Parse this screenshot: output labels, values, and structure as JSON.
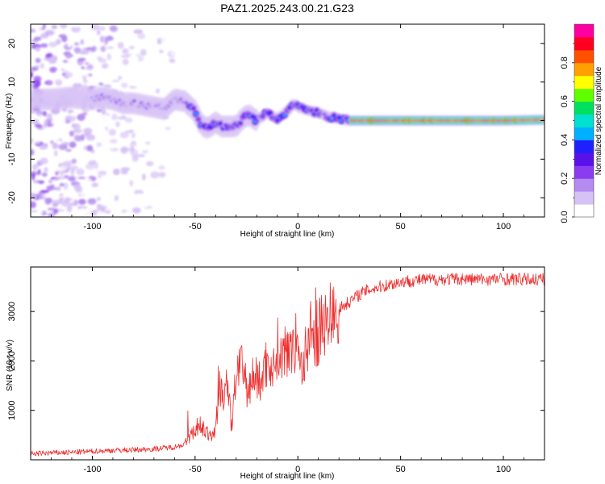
{
  "title": "PAZ1.2025.243.00.21.G23",
  "colors": {
    "snr_line": "#ee2e2e",
    "colormap": [
      "#ffffff",
      "#d6c2f5",
      "#b48cf0",
      "#8a3cf0",
      "#5a10e8",
      "#2020ff",
      "#00b0ff",
      "#00e0d0",
      "#00e060",
      "#60ff00",
      "#ffff00",
      "#ffa000",
      "#ff5000",
      "#ff0020",
      "#ff00a0"
    ]
  },
  "chart_data": [
    {
      "type": "heatmap",
      "name": "spectrogram",
      "xlabel": "Height of straight line (km)",
      "ylabel": "Frequency (Hz)",
      "xlim": [
        -130,
        120
      ],
      "ylim": [
        -25,
        25
      ],
      "xticks": [
        -100,
        -50,
        0,
        50,
        100
      ],
      "yticks": [
        -20,
        -10,
        0,
        10,
        20
      ],
      "xtick_labels": [
        "-100",
        "-50",
        "0",
        "50",
        "100"
      ],
      "ytick_labels": [
        "-20",
        "-10",
        "0",
        "10",
        "20"
      ],
      "ridge_frequency": {
        "x": [
          -130,
          -120,
          -110,
          -100,
          -95,
          -90,
          -85,
          -80,
          -75,
          -70,
          -65,
          -60,
          -55,
          -50,
          -47,
          -44,
          -40,
          -37,
          -34,
          -30,
          -27,
          -24,
          -20,
          -15,
          -10,
          -5,
          -2,
          0,
          3,
          6,
          10,
          15,
          20,
          25,
          30,
          40,
          60,
          80,
          100,
          120
        ],
        "y": [
          5.5,
          5.5,
          6,
          5.5,
          6,
          5.5,
          4.5,
          4.5,
          4.0,
          3.5,
          3.0,
          5.5,
          5.0,
          2.5,
          -1.0,
          -2.0,
          -0.5,
          -1.5,
          -1.5,
          -1.5,
          0.5,
          1.5,
          0.0,
          2.0,
          0.5,
          2.5,
          4.5,
          3.5,
          3.0,
          2.5,
          2.0,
          1.0,
          0.5,
          0.0,
          0.0,
          0.0,
          0.0,
          0.0,
          0.0,
          0.2
        ]
      },
      "colorbar": {
        "label": "Normalized spectral amplitude",
        "range": [
          0,
          1
        ],
        "ticks": [
          0.0,
          0.2,
          0.4,
          0.6,
          0.8
        ],
        "tick_labels": [
          "0.0",
          "0.2",
          "0.4",
          "0.6",
          "0.8"
        ]
      }
    },
    {
      "type": "line",
      "name": "snr",
      "xlabel": "Height of straight line (km)",
      "ylabel": "SNR (10 * v/v)",
      "xlim": [
        -130,
        120
      ],
      "ylim": [
        0,
        3900
      ],
      "xticks": [
        -100,
        -50,
        0,
        50,
        100
      ],
      "yticks": [
        1000,
        2000,
        3000
      ],
      "xtick_labels": [
        "-100",
        "-50",
        "0",
        "50",
        "100"
      ],
      "ytick_labels": [
        "1000",
        "2000",
        "3000"
      ],
      "series": [
        {
          "name": "SNR",
          "x": [
            -130,
            -120,
            -110,
            -100,
            -90,
            -80,
            -70,
            -60,
            -55,
            -50,
            -47,
            -44,
            -42,
            -40,
            -38,
            -36,
            -34,
            -32,
            -30,
            -28,
            -26,
            -24,
            -22,
            -20,
            -18,
            -16,
            -14,
            -12,
            -10,
            -8,
            -6,
            -4,
            -2,
            0,
            2,
            4,
            6,
            8,
            10,
            15,
            20,
            25,
            30,
            35,
            40,
            45,
            50,
            60,
            70,
            80,
            90,
            100,
            110,
            120
          ],
          "y": [
            120,
            140,
            150,
            170,
            190,
            200,
            220,
            260,
            320,
            600,
            700,
            520,
            460,
            650,
            1500,
            1250,
            1400,
            700,
            1800,
            2000,
            1500,
            1350,
            1700,
            1650,
            1550,
            1900,
            2050,
            1750,
            2300,
            2050,
            2150,
            2500,
            2300,
            2250,
            1800,
            2200,
            2600,
            2450,
            2600,
            2850,
            3050,
            3200,
            3350,
            3450,
            3500,
            3550,
            3600,
            3640,
            3650,
            3660,
            3650,
            3660,
            3650,
            3650
          ]
        }
      ]
    }
  ]
}
